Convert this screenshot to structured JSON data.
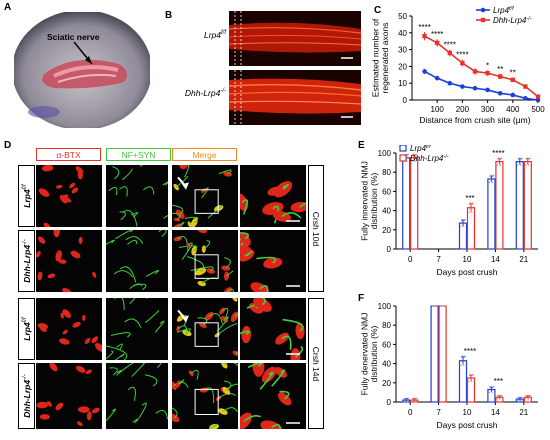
{
  "panels": {
    "a": "A",
    "b": "B",
    "c": "C",
    "d": "D",
    "e": "E",
    "f": "F"
  },
  "panel_a": {
    "annotation": "Sciatic nerve"
  },
  "panel_b": {
    "row1": "Lrp4",
    "row1_sup": "f/f",
    "row2": "Dhh-Lrp4",
    "row2_sup": "-/-"
  },
  "panel_d": {
    "headers": [
      "α-BTX",
      "NF+SYN",
      "Merge"
    ],
    "row_labels": [
      {
        "base": "Lrp4",
        "sup": "f/f"
      },
      {
        "base": "Dhh-Lrp4",
        "sup": "-/-"
      },
      {
        "base": "Lrp4",
        "sup": "f/f"
      },
      {
        "base": "Dhh-Lrp4",
        "sup": "-/-"
      }
    ],
    "side_labels": [
      "Crsh 10d",
      "Crsh 14d"
    ]
  },
  "colors": {
    "lrp4": "#1f3fd6",
    "dhh": "#e8322a",
    "green": "#5cd84a",
    "orange": "#f28a1e",
    "red_header": "#e8322a"
  },
  "chart_data": [
    {
      "id": "C",
      "type": "line",
      "xlabel": "Distance from crush site (μm)",
      "ylabel": "Estimated number of regenerated axons",
      "xlim": [
        0,
        500
      ],
      "ylim": [
        0,
        50
      ],
      "xticks": [
        100,
        200,
        300,
        400,
        500
      ],
      "yticks": [
        0,
        10,
        20,
        30,
        40,
        50
      ],
      "legend_position": "top-right",
      "x": [
        50,
        100,
        150,
        200,
        250,
        300,
        350,
        400,
        450,
        500
      ],
      "series": [
        {
          "name": "Lrp4",
          "sup": "f/f",
          "values": [
            17,
            13,
            10,
            8,
            7,
            6,
            4,
            3,
            1,
            0
          ],
          "errors": [
            1.5,
            1.2,
            1.0,
            1.0,
            0.8,
            0.8,
            0.8,
            0.6,
            0.5,
            0.3
          ]
        },
        {
          "name": "Dhh-Lrp4",
          "sup": "-/-",
          "values": [
            38,
            34,
            28,
            22,
            17,
            16,
            14,
            12,
            8,
            2
          ],
          "errors": [
            2.5,
            2.2,
            2.0,
            2.0,
            1.8,
            1.6,
            1.5,
            1.3,
            1.2,
            0.8
          ]
        }
      ],
      "significance": [
        {
          "x": 50,
          "label": "****"
        },
        {
          "x": 100,
          "label": "****"
        },
        {
          "x": 150,
          "label": "****"
        },
        {
          "x": 200,
          "label": "****"
        },
        {
          "x": 300,
          "label": "*"
        },
        {
          "x": 350,
          "label": "**"
        },
        {
          "x": 400,
          "label": "**"
        }
      ]
    },
    {
      "id": "E",
      "type": "bar",
      "xlabel": "Days post crush",
      "ylabel": "Fully innervated NMJ distribution (%)",
      "ylim": [
        0,
        100
      ],
      "yticks": [
        0,
        20,
        40,
        60,
        80,
        100
      ],
      "categories": [
        "0",
        "7",
        "10",
        "14",
        "21"
      ],
      "legend_position": "top-left",
      "series": [
        {
          "name": "Lrp4",
          "sup": "f/f",
          "values": [
            95,
            0,
            27,
            73,
            91
          ],
          "errors": [
            3,
            0,
            3,
            3,
            3
          ]
        },
        {
          "name": "Dhh-Lrp4",
          "sup": "-/-",
          "values": [
            95,
            0,
            43,
            91,
            91
          ],
          "errors": [
            3,
            0,
            4,
            3,
            3
          ]
        }
      ],
      "significance": [
        {
          "category": "10",
          "label": "***"
        },
        {
          "category": "14",
          "label": "****"
        }
      ]
    },
    {
      "id": "F",
      "type": "bar",
      "xlabel": "Days post crush",
      "ylabel": "Fully denervated NMJ distribution (%)",
      "ylim": [
        0,
        100
      ],
      "yticks": [
        0,
        20,
        40,
        60,
        80,
        100
      ],
      "categories": [
        "0",
        "7",
        "10",
        "14",
        "21"
      ],
      "series": [
        {
          "name": "Lrp4",
          "sup": "f/f",
          "values": [
            2,
            100,
            43,
            13,
            3
          ],
          "errors": [
            1.5,
            0,
            4,
            2.5,
            1.5
          ]
        },
        {
          "name": "Dhh-Lrp4",
          "sup": "-/-",
          "values": [
            2,
            100,
            25,
            5,
            5
          ],
          "errors": [
            1.5,
            0,
            3,
            1.5,
            1.5
          ]
        }
      ],
      "significance": [
        {
          "category": "10",
          "label": "****"
        },
        {
          "category": "14",
          "label": "***"
        }
      ]
    }
  ]
}
